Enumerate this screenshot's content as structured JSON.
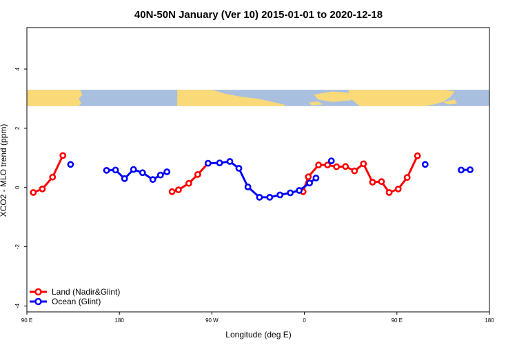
{
  "chart_data": {
    "type": "line",
    "title": "40N-50N January (Ver 10)   2015-01-01 to 2020-12-18",
    "xlabel": "Longitude (deg E)",
    "ylabel": "XCO2 - MLO trend (ppm)",
    "xlim": [
      90,
      450
    ],
    "ylim": [
      -4.2,
      5.4
    ],
    "x_ticks": [
      {
        "value": 90,
        "label": "90 E"
      },
      {
        "value": 162,
        "label": "180"
      },
      {
        "value": 234,
        "label": "90 W"
      },
      {
        "value": 306,
        "label": "0"
      },
      {
        "value": 378,
        "label": "90 E"
      },
      {
        "value": 450,
        "label": "180"
      }
    ],
    "y_ticks": [
      {
        "value": -4,
        "label": "-4"
      },
      {
        "value": -2,
        "label": "-2"
      },
      {
        "value": 0,
        "label": "0"
      },
      {
        "value": 2,
        "label": "2"
      },
      {
        "value": 4,
        "label": "4"
      }
    ],
    "map_strip": {
      "y_range": [
        2.75,
        3.3
      ],
      "land_color": "#f9d978",
      "ocean_color": "#a9bfdf"
    },
    "legend_position": "bottom-left",
    "series": [
      {
        "name": "Land (Nadir&Glint)",
        "color": "#ff0000",
        "segments": [
          [
            [
              95,
              -0.17
            ],
            [
              102,
              -0.05
            ],
            [
              110,
              0.35
            ],
            [
              118,
              1.08
            ]
          ],
          [
            [
              203,
              -0.14
            ],
            [
              208,
              -0.08
            ],
            [
              216,
              0.14
            ],
            [
              223,
              0.44
            ],
            [
              231,
              0.82
            ]
          ],
          [
            [
              305,
              -0.14
            ],
            [
              309,
              0.36
            ],
            [
              317,
              0.76
            ],
            [
              324,
              0.76
            ],
            [
              331,
              0.7
            ],
            [
              338,
              0.71
            ],
            [
              345,
              0.56
            ],
            [
              352,
              0.8
            ],
            [
              359,
              0.18
            ],
            [
              366,
              0.2
            ],
            [
              372,
              -0.17
            ],
            [
              379,
              -0.05
            ],
            [
              386,
              0.34
            ],
            [
              394,
              1.07
            ]
          ]
        ]
      },
      {
        "name": "Ocean (Glint)",
        "color": "#0000ff",
        "segments": [
          [
            [
              124,
              0.78
            ]
          ],
          [
            [
              152,
              0.58
            ],
            [
              159,
              0.59
            ],
            [
              166,
              0.3
            ],
            [
              173,
              0.61
            ],
            [
              180,
              0.5
            ],
            [
              188,
              0.27
            ],
            [
              194,
              0.42
            ],
            [
              199,
              0.53
            ]
          ],
          [
            [
              231,
              0.82
            ],
            [
              240,
              0.83
            ],
            [
              248,
              0.88
            ],
            [
              255,
              0.65
            ],
            [
              262,
              0.02
            ],
            [
              271,
              -0.33
            ],
            [
              279,
              -0.33
            ],
            [
              287,
              -0.25
            ],
            [
              295,
              -0.18
            ],
            [
              302,
              -0.1
            ],
            [
              310,
              0.15
            ],
            [
              315,
              0.32
            ]
          ],
          [
            [
              327,
              0.9
            ]
          ],
          [
            [
              400,
              0.78
            ]
          ],
          [
            [
              428,
              0.59
            ],
            [
              435,
              0.6
            ]
          ]
        ]
      }
    ]
  }
}
